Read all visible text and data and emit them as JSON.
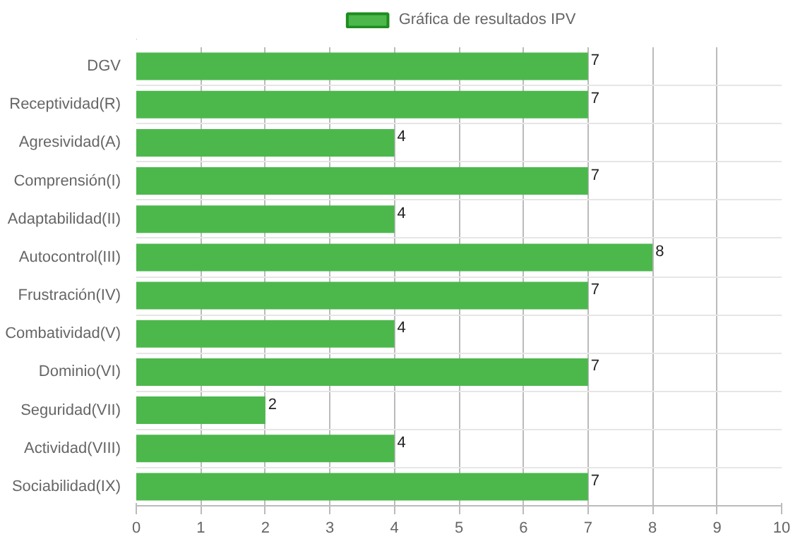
{
  "chart_data": {
    "type": "bar",
    "orientation": "horizontal",
    "categories": [
      "DGV",
      "Receptividad(R)",
      "Agresividad(A)",
      "Comprensión(I)",
      "Adaptabilidad(II)",
      "Autocontrol(III)",
      "Frustración(IV)",
      "Combatividad(V)",
      "Dominio(VI)",
      "Seguridad(VII)",
      "Actividad(VIII)",
      "Sociabilidad(IX)"
    ],
    "series": [
      {
        "name": "Gráfica de resultados IPV",
        "color": "#4cb84c",
        "values": [
          7,
          7,
          4,
          7,
          4,
          8,
          7,
          4,
          7,
          2,
          4,
          7
        ]
      }
    ],
    "xlim": [
      0,
      10
    ],
    "xticks": [
      0,
      1,
      2,
      3,
      4,
      5,
      6,
      7,
      8,
      9,
      10
    ],
    "grid": true,
    "legend": "top",
    "data_labels": true
  }
}
